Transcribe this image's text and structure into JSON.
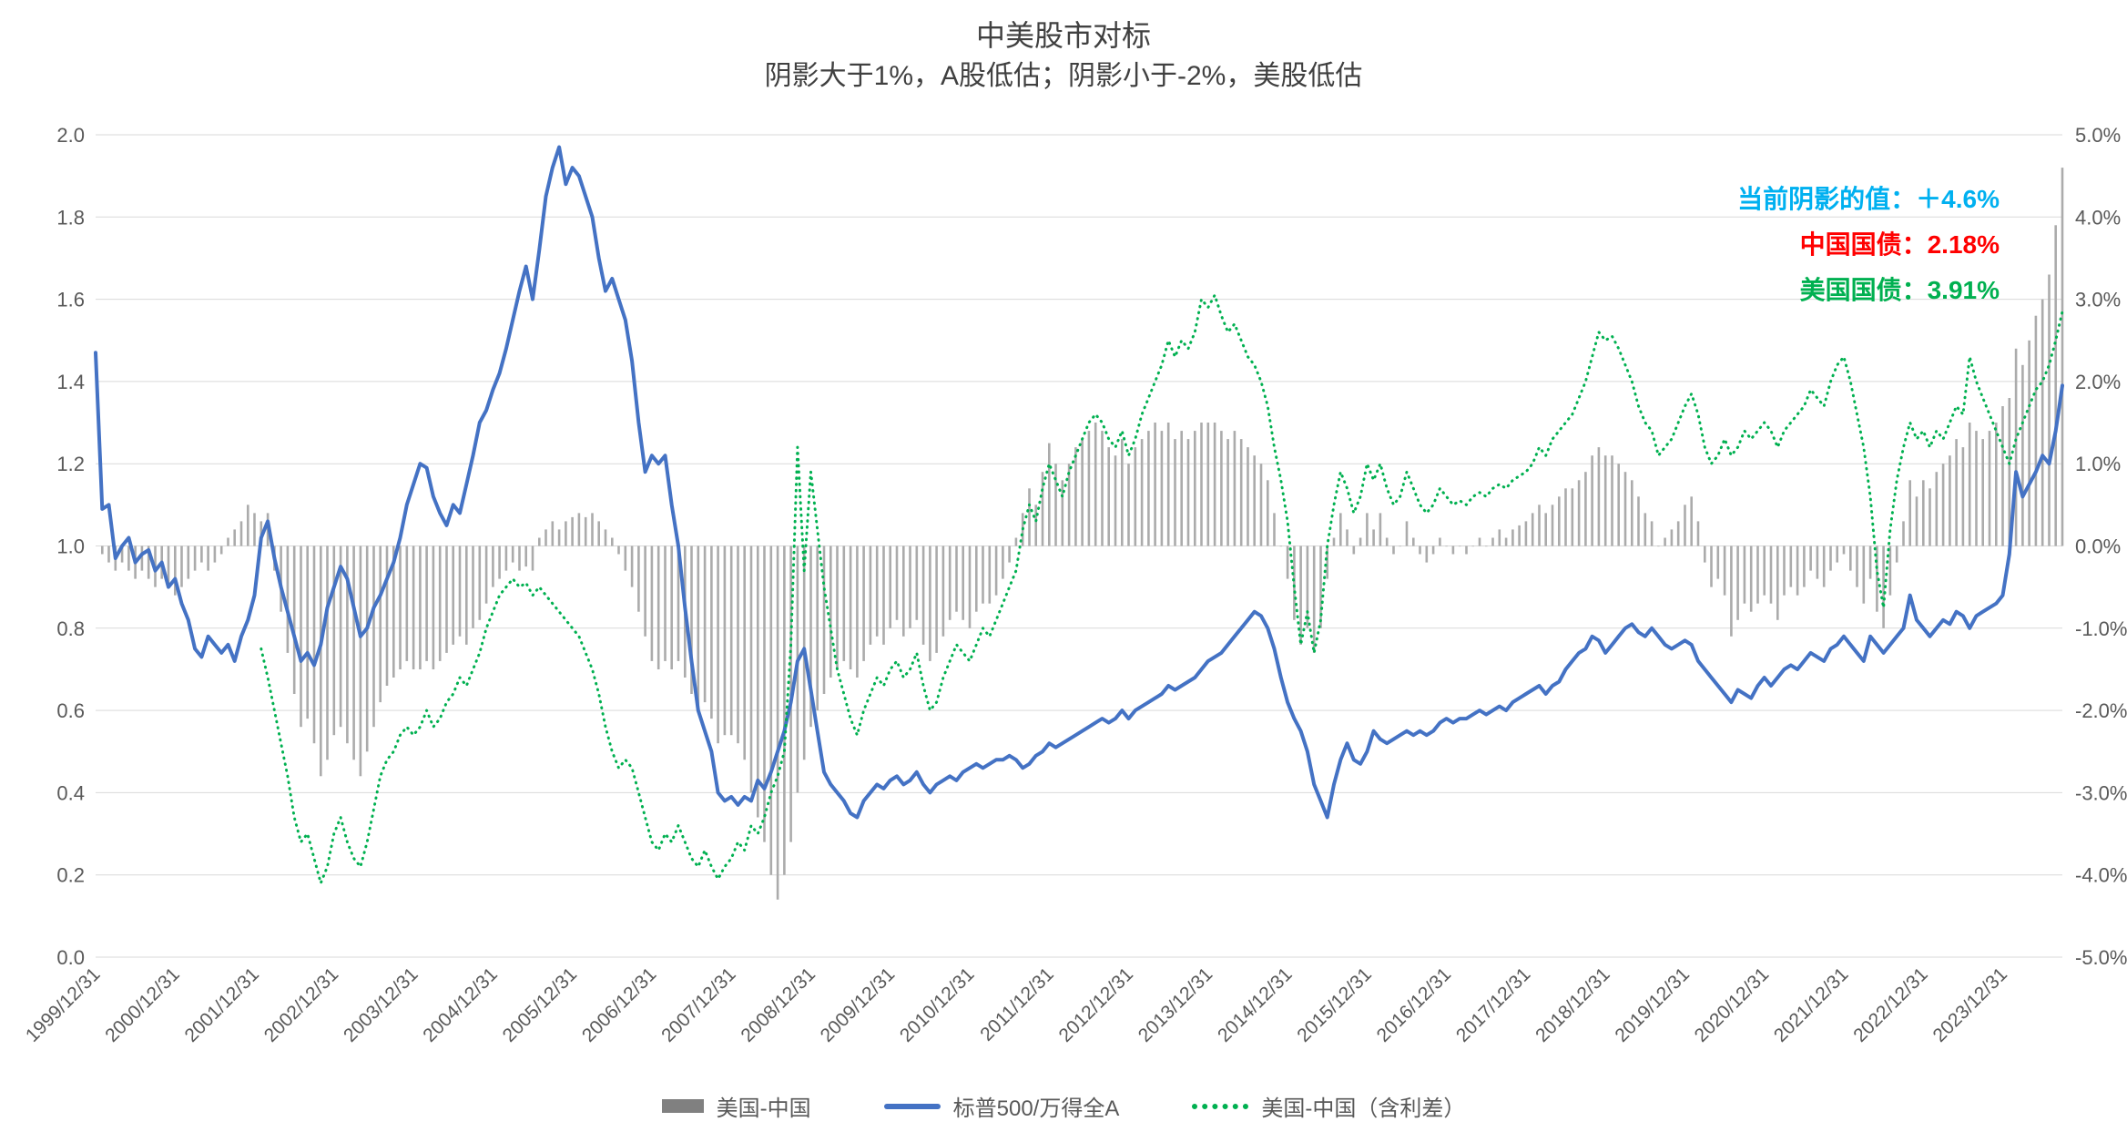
{
  "title": "中美股市对标",
  "subtitle": "阴影大于1%，A股低估；阴影小于-2%，美股低估",
  "annotations": {
    "shadow": {
      "text": "当前阴影的值：＋4.6%",
      "color": "#00B0F0"
    },
    "china_bond": {
      "text": "中国国债：2.18%",
      "color": "#FF0000"
    },
    "us_bond": {
      "text": "美国国债：3.91%",
      "color": "#00B050"
    }
  },
  "chart_data": {
    "type": "combo",
    "x_start": "1999/12",
    "x_step": "monthly",
    "n_points": 298,
    "x_tick_labels": [
      "1999/12/31",
      "2000/12/31",
      "2001/12/31",
      "2002/12/31",
      "2003/12/31",
      "2004/12/31",
      "2005/12/31",
      "2006/12/31",
      "2007/12/31",
      "2008/12/31",
      "2009/12/31",
      "2010/12/31",
      "2011/12/31",
      "2012/12/31",
      "2013/12/31",
      "2014/12/31",
      "2015/12/31",
      "2016/12/31",
      "2017/12/31",
      "2018/12/31",
      "2019/12/31",
      "2020/12/31",
      "2021/12/31",
      "2022/12/31",
      "2023/12/31"
    ],
    "left_axis": {
      "min": 0.0,
      "max": 2.0,
      "ticks": [
        "0.0",
        "0.2",
        "0.4",
        "0.6",
        "0.8",
        "1.0",
        "1.2",
        "1.4",
        "1.6",
        "1.8",
        "2.0"
      ]
    },
    "right_axis": {
      "min": -5.0,
      "max": 5.0,
      "ticks": [
        "-5.0%",
        "-4.0%",
        "-3.0%",
        "-2.0%",
        "-1.0%",
        "0.0%",
        "1.0%",
        "2.0%",
        "3.0%",
        "4.0%",
        "5.0%"
      ]
    },
    "grid": true,
    "legend_position": "bottom",
    "series": [
      {
        "name": "美国-中国",
        "type": "bar",
        "axis": "right",
        "unit": "%",
        "color": "#ABABAB",
        "legend_color": "#808080",
        "values": [
          null,
          -0.1,
          -0.2,
          -0.3,
          -0.2,
          -0.3,
          -0.4,
          -0.3,
          -0.4,
          -0.5,
          -0.4,
          -0.5,
          -0.6,
          -0.5,
          -0.4,
          -0.3,
          -0.2,
          -0.3,
          -0.2,
          -0.1,
          0.1,
          0.2,
          0.3,
          0.5,
          0.4,
          0.3,
          0.4,
          -0.3,
          -0.8,
          -1.3,
          -1.8,
          -2.2,
          -2.1,
          -2.4,
          -2.8,
          -2.6,
          -2.3,
          -2.2,
          -2.4,
          -2.6,
          -2.8,
          -2.5,
          -2.2,
          -1.9,
          -1.7,
          -1.6,
          -1.5,
          -1.4,
          -1.5,
          -1.5,
          -1.4,
          -1.5,
          -1.4,
          -1.3,
          -1.2,
          -1.1,
          -1.2,
          -1.0,
          -0.9,
          -0.7,
          -0.5,
          -0.4,
          -0.3,
          -0.2,
          -0.3,
          -0.25,
          -0.3,
          0.1,
          0.2,
          0.3,
          0.2,
          0.3,
          0.35,
          0.4,
          0.35,
          0.4,
          0.3,
          0.2,
          0.1,
          -0.1,
          -0.3,
          -0.5,
          -0.8,
          -1.1,
          -1.4,
          -1.5,
          -1.4,
          -1.5,
          -1.4,
          -1.6,
          -1.8,
          -2.0,
          -1.9,
          -2.1,
          -2.4,
          -2.3,
          -2.3,
          -2.4,
          -2.6,
          -3.0,
          -3.3,
          -3.6,
          -4.0,
          -4.3,
          -4.0,
          -3.6,
          -3.0,
          -2.6,
          -2.2,
          -2.0,
          -1.8,
          -1.6,
          -1.5,
          -1.4,
          -1.5,
          -1.6,
          -1.4,
          -1.2,
          -1.1,
          -1.2,
          -1.0,
          -0.9,
          -1.1,
          -1.0,
          -0.9,
          -1.2,
          -1.4,
          -1.3,
          -1.1,
          -0.9,
          -0.8,
          -0.9,
          -1.0,
          -0.8,
          -0.7,
          -0.7,
          -0.6,
          -0.4,
          -0.2,
          0.1,
          0.4,
          0.7,
          0.5,
          0.9,
          1.25,
          1.0,
          0.8,
          1.0,
          1.2,
          1.3,
          1.4,
          1.5,
          1.4,
          1.2,
          1.1,
          1.3,
          1.0,
          1.2,
          1.3,
          1.4,
          1.5,
          1.4,
          1.5,
          1.3,
          1.4,
          1.3,
          1.4,
          1.5,
          1.5,
          1.5,
          1.4,
          1.3,
          1.4,
          1.3,
          1.2,
          1.1,
          1.0,
          0.8,
          0.4,
          0.0,
          -0.4,
          -0.9,
          -1.2,
          -1.0,
          -1.3,
          -1.0,
          -0.4,
          0.1,
          0.4,
          0.2,
          -0.1,
          0.1,
          0.4,
          0.2,
          0.4,
          0.1,
          -0.1,
          0.0,
          0.3,
          0.1,
          -0.1,
          -0.2,
          -0.1,
          0.1,
          0.0,
          -0.1,
          0.0,
          -0.1,
          0.0,
          0.1,
          0.0,
          0.1,
          0.2,
          0.1,
          0.2,
          0.25,
          0.3,
          0.4,
          0.5,
          0.4,
          0.5,
          0.6,
          0.7,
          0.7,
          0.8,
          0.9,
          1.1,
          1.2,
          1.1,
          1.1,
          1.0,
          0.9,
          0.8,
          0.6,
          0.4,
          0.3,
          0.0,
          0.1,
          0.2,
          0.3,
          0.5,
          0.6,
          0.3,
          -0.2,
          -0.5,
          -0.4,
          -0.6,
          -1.1,
          -0.9,
          -0.7,
          -0.8,
          -0.7,
          -0.6,
          -0.7,
          -0.9,
          -0.6,
          -0.5,
          -0.6,
          -0.5,
          -0.3,
          -0.4,
          -0.5,
          -0.3,
          -0.2,
          -0.1,
          -0.3,
          -0.5,
          -0.7,
          -0.4,
          -0.8,
          -1.0,
          -0.6,
          -0.2,
          0.3,
          0.8,
          0.6,
          0.8,
          0.7,
          0.9,
          1.0,
          1.1,
          1.3,
          1.2,
          1.5,
          1.4,
          1.3,
          1.4,
          1.5,
          1.7,
          1.8,
          2.4,
          2.2,
          2.5,
          2.8,
          3.0,
          3.3,
          3.9,
          4.6
        ]
      },
      {
        "name": "标普500/万得全A",
        "type": "line",
        "axis": "left",
        "color": "#4472C4",
        "values": [
          1.47,
          1.09,
          1.1,
          0.97,
          1.0,
          1.02,
          0.96,
          0.98,
          0.99,
          0.94,
          0.96,
          0.9,
          0.92,
          0.86,
          0.82,
          0.75,
          0.73,
          0.78,
          0.76,
          0.74,
          0.76,
          0.72,
          0.78,
          0.82,
          0.88,
          1.02,
          1.06,
          0.97,
          0.9,
          0.84,
          0.78,
          0.72,
          0.74,
          0.71,
          0.76,
          0.85,
          0.9,
          0.95,
          0.92,
          0.85,
          0.78,
          0.8,
          0.85,
          0.88,
          0.92,
          0.96,
          1.02,
          1.1,
          1.15,
          1.2,
          1.19,
          1.12,
          1.08,
          1.05,
          1.1,
          1.08,
          1.15,
          1.22,
          1.3,
          1.33,
          1.38,
          1.42,
          1.48,
          1.55,
          1.62,
          1.68,
          1.6,
          1.72,
          1.85,
          1.92,
          1.97,
          1.88,
          1.92,
          1.9,
          1.85,
          1.8,
          1.7,
          1.62,
          1.65,
          1.6,
          1.55,
          1.45,
          1.3,
          1.18,
          1.22,
          1.2,
          1.22,
          1.1,
          1.0,
          0.85,
          0.72,
          0.6,
          0.55,
          0.5,
          0.4,
          0.38,
          0.39,
          0.37,
          0.39,
          0.38,
          0.43,
          0.41,
          0.45,
          0.5,
          0.55,
          0.62,
          0.72,
          0.75,
          0.65,
          0.55,
          0.45,
          0.42,
          0.4,
          0.38,
          0.35,
          0.34,
          0.38,
          0.4,
          0.42,
          0.41,
          0.43,
          0.44,
          0.42,
          0.43,
          0.45,
          0.42,
          0.4,
          0.42,
          0.43,
          0.44,
          0.43,
          0.45,
          0.46,
          0.47,
          0.46,
          0.47,
          0.48,
          0.48,
          0.49,
          0.48,
          0.46,
          0.47,
          0.49,
          0.5,
          0.52,
          0.51,
          0.52,
          0.53,
          0.54,
          0.55,
          0.56,
          0.57,
          0.58,
          0.57,
          0.58,
          0.6,
          0.58,
          0.6,
          0.61,
          0.62,
          0.63,
          0.64,
          0.66,
          0.65,
          0.66,
          0.67,
          0.68,
          0.7,
          0.72,
          0.73,
          0.74,
          0.76,
          0.78,
          0.8,
          0.82,
          0.84,
          0.83,
          0.8,
          0.75,
          0.68,
          0.62,
          0.58,
          0.55,
          0.5,
          0.42,
          0.38,
          0.34,
          0.42,
          0.48,
          0.52,
          0.48,
          0.47,
          0.5,
          0.55,
          0.53,
          0.52,
          0.53,
          0.54,
          0.55,
          0.54,
          0.55,
          0.54,
          0.55,
          0.57,
          0.58,
          0.57,
          0.58,
          0.58,
          0.59,
          0.6,
          0.59,
          0.6,
          0.61,
          0.6,
          0.62,
          0.63,
          0.64,
          0.65,
          0.66,
          0.64,
          0.66,
          0.67,
          0.7,
          0.72,
          0.74,
          0.75,
          0.78,
          0.77,
          0.74,
          0.76,
          0.78,
          0.8,
          0.81,
          0.79,
          0.78,
          0.8,
          0.78,
          0.76,
          0.75,
          0.76,
          0.77,
          0.76,
          0.72,
          0.7,
          0.68,
          0.66,
          0.64,
          0.62,
          0.65,
          0.64,
          0.63,
          0.66,
          0.68,
          0.66,
          0.68,
          0.7,
          0.71,
          0.7,
          0.72,
          0.74,
          0.73,
          0.72,
          0.75,
          0.76,
          0.78,
          0.76,
          0.74,
          0.72,
          0.78,
          0.76,
          0.74,
          0.76,
          0.78,
          0.8,
          0.88,
          0.82,
          0.8,
          0.78,
          0.8,
          0.82,
          0.81,
          0.84,
          0.83,
          0.8,
          0.83,
          0.84,
          0.85,
          0.86,
          0.88,
          0.98,
          1.18,
          1.12,
          1.15,
          1.18,
          1.22,
          1.2,
          1.28,
          1.39
        ]
      },
      {
        "name": "美国-中国（含利差）",
        "type": "dotted-line",
        "axis": "right",
        "unit": "%",
        "color": "#00B050",
        "values": [
          null,
          null,
          null,
          null,
          null,
          null,
          null,
          null,
          null,
          null,
          null,
          null,
          null,
          null,
          null,
          null,
          null,
          null,
          null,
          null,
          null,
          null,
          null,
          null,
          null,
          -1.25,
          -1.6,
          -2.0,
          -2.4,
          -2.8,
          -3.3,
          -3.6,
          -3.5,
          -3.8,
          -4.1,
          -3.9,
          -3.5,
          -3.3,
          -3.6,
          -3.8,
          -3.9,
          -3.6,
          -3.2,
          -2.8,
          -2.6,
          -2.5,
          -2.3,
          -2.2,
          -2.3,
          -2.2,
          -2.0,
          -2.2,
          -2.1,
          -1.9,
          -1.8,
          -1.6,
          -1.7,
          -1.5,
          -1.3,
          -1.0,
          -0.8,
          -0.6,
          -0.5,
          -0.4,
          -0.5,
          -0.45,
          -0.6,
          -0.5,
          -0.6,
          -0.7,
          -0.8,
          -0.9,
          -1.0,
          -1.1,
          -1.3,
          -1.5,
          -1.8,
          -2.2,
          -2.5,
          -2.7,
          -2.6,
          -2.7,
          -3.0,
          -3.3,
          -3.6,
          -3.7,
          -3.5,
          -3.6,
          -3.4,
          -3.6,
          -3.8,
          -3.9,
          -3.7,
          -3.9,
          -4.05,
          -3.9,
          -3.8,
          -3.6,
          -3.7,
          -3.4,
          -3.5,
          -3.3,
          -3.0,
          -2.8,
          -2.5,
          -1.2,
          1.2,
          -0.3,
          0.9,
          0.2,
          -0.5,
          -1.0,
          -1.5,
          -1.8,
          -2.1,
          -2.3,
          -2.0,
          -1.8,
          -1.6,
          -1.7,
          -1.5,
          -1.4,
          -1.6,
          -1.5,
          -1.3,
          -1.7,
          -2.0,
          -1.9,
          -1.6,
          -1.4,
          -1.2,
          -1.3,
          -1.4,
          -1.2,
          -1.0,
          -1.1,
          -0.9,
          -0.7,
          -0.5,
          -0.3,
          0.2,
          0.5,
          0.3,
          0.7,
          1.0,
          0.8,
          0.6,
          0.9,
          1.1,
          1.3,
          1.5,
          1.6,
          1.5,
          1.3,
          1.2,
          1.4,
          1.1,
          1.3,
          1.6,
          1.8,
          2.0,
          2.2,
          2.5,
          2.3,
          2.5,
          2.4,
          2.6,
          3.0,
          2.9,
          3.05,
          2.8,
          2.6,
          2.7,
          2.5,
          2.3,
          2.2,
          2.0,
          1.7,
          1.2,
          0.8,
          0.3,
          -0.5,
          -1.2,
          -0.8,
          -1.3,
          -0.9,
          0.0,
          0.5,
          0.9,
          0.7,
          0.4,
          0.6,
          1.0,
          0.8,
          1.0,
          0.7,
          0.5,
          0.6,
          0.9,
          0.7,
          0.5,
          0.4,
          0.5,
          0.7,
          0.6,
          0.5,
          0.55,
          0.5,
          0.6,
          0.65,
          0.6,
          0.7,
          0.75,
          0.7,
          0.8,
          0.85,
          0.9,
          1.0,
          1.2,
          1.1,
          1.3,
          1.4,
          1.5,
          1.6,
          1.8,
          2.0,
          2.3,
          2.6,
          2.5,
          2.55,
          2.4,
          2.2,
          2.0,
          1.7,
          1.5,
          1.4,
          1.1,
          1.2,
          1.3,
          1.5,
          1.7,
          1.85,
          1.6,
          1.2,
          1.0,
          1.1,
          1.3,
          1.1,
          1.2,
          1.4,
          1.3,
          1.4,
          1.5,
          1.4,
          1.2,
          1.4,
          1.5,
          1.6,
          1.7,
          1.9,
          1.8,
          1.7,
          2.0,
          2.2,
          2.3,
          2.0,
          1.6,
          1.2,
          0.6,
          -0.3,
          -0.75,
          0.2,
          0.8,
          1.2,
          1.5,
          1.3,
          1.4,
          1.2,
          1.4,
          1.3,
          1.5,
          1.7,
          1.6,
          2.3,
          2.0,
          1.8,
          1.6,
          1.4,
          1.2,
          1.0,
          1.3,
          1.5,
          1.7,
          1.9,
          2.0,
          2.2,
          2.5,
          2.85
        ]
      }
    ]
  }
}
